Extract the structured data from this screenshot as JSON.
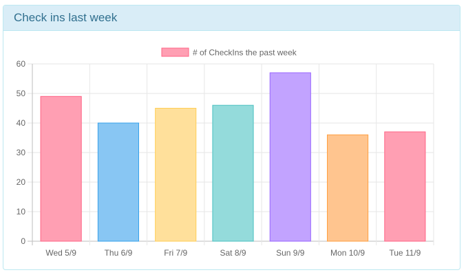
{
  "panel": {
    "title": "Check ins last week",
    "border_color": "#bce8f1",
    "heading_bg": "#d9edf7",
    "title_color": "#31708f"
  },
  "chart_data": {
    "type": "bar",
    "categories": [
      "Wed 5/9",
      "Thu 6/9",
      "Fri 7/9",
      "Sat 8/9",
      "Sun 9/9",
      "Mon 10/9",
      "Tue 11/9"
    ],
    "series": [
      {
        "name": "# of CheckIns the past week",
        "values": [
          49,
          40,
          45,
          46,
          57,
          36,
          37
        ]
      }
    ],
    "bar_fill_colors": [
      "#ff9fb3",
      "#88c6f3",
      "#ffe09b",
      "#94dbdb",
      "#c2a3ff",
      "#ffc58f",
      "#ff9fb3"
    ],
    "bar_border_colors": [
      "#ff6384",
      "#36a2eb",
      "#ffce56",
      "#4bc0c0",
      "#9966ff",
      "#ff9f40",
      "#ff6384"
    ],
    "legend_swatch_fill": "#ff9fb3",
    "legend_swatch_border": "#ff6384",
    "legend_position": "top",
    "ylim": [
      0,
      60
    ],
    "yticks": [
      0,
      10,
      20,
      30,
      40,
      50,
      60
    ],
    "ytick_labels": [
      "0",
      "10",
      "20",
      "30",
      "40",
      "50",
      "60"
    ],
    "grid": true,
    "xlabel": "",
    "ylabel": ""
  }
}
